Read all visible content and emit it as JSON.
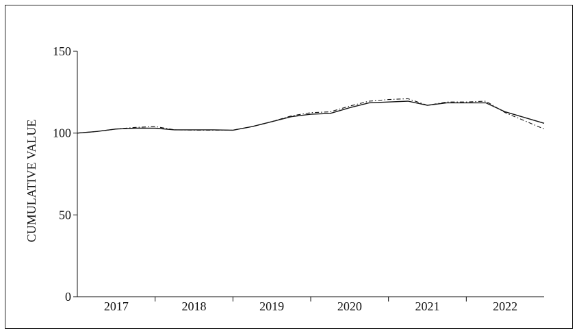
{
  "chart_data": {
    "type": "line",
    "title": "",
    "xlabel": "",
    "ylabel": "CUMULATIVE VALUE",
    "ylim": [
      0,
      150
    ],
    "yticks": [
      0,
      50,
      100,
      150
    ],
    "xlim": [
      2016.5,
      2022.5
    ],
    "xtick_labels": [
      "2017",
      "2018",
      "2019",
      "2020",
      "2021",
      "2022"
    ],
    "grid": false,
    "series": [
      {
        "style": "solid",
        "color": "#111111",
        "x": [
          2016.5,
          2016.75,
          2017.0,
          2017.25,
          2017.5,
          2017.75,
          2018.0,
          2018.25,
          2018.5,
          2018.75,
          2019.0,
          2019.25,
          2019.5,
          2019.75,
          2020.0,
          2020.25,
          2020.5,
          2020.75,
          2021.0,
          2021.25,
          2021.5,
          2021.75,
          2022.0,
          2022.25,
          2022.5
        ],
        "y": [
          100,
          101,
          102.5,
          103,
          103,
          102,
          102,
          102,
          101.8,
          104,
          107,
          110,
          111.5,
          112,
          115.5,
          118.5,
          119,
          119.5,
          117,
          118.5,
          118.5,
          118.5,
          113,
          109.5,
          106
        ]
      },
      {
        "style": "dash-dot",
        "color": "#111111",
        "x": [
          2016.5,
          2016.75,
          2017.0,
          2017.25,
          2017.5,
          2017.75,
          2018.0,
          2018.25,
          2018.5,
          2018.75,
          2019.0,
          2019.25,
          2019.5,
          2019.75,
          2020.0,
          2020.25,
          2020.5,
          2020.75,
          2021.0,
          2021.25,
          2021.5,
          2021.75,
          2022.0,
          2022.25,
          2022.5
        ],
        "y": [
          100,
          101,
          102.5,
          103.5,
          104,
          102,
          101.8,
          101.8,
          101.8,
          104,
          107,
          110.5,
          112.5,
          113,
          116.5,
          119.5,
          120.5,
          121,
          117,
          119,
          119,
          119.5,
          112.5,
          107.5,
          102.5
        ]
      }
    ]
  }
}
